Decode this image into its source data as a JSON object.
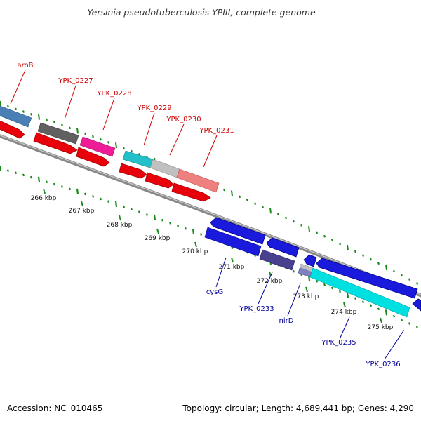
{
  "title": "Yersinia pseudotuberculosis YPIII, complete genome",
  "footer": {
    "accession": "Accession: NC_010465",
    "summary": "Topology: circular; Length: 4,689,441 bp; Genes: 4,290"
  },
  "colors": {
    "forward_label": "#cc0000",
    "reverse_label": "#00009a",
    "tick": "#1a8a1a",
    "backbone": "#777777"
  },
  "ruler": {
    "unit": "kbp",
    "labels": [
      "266 kbp",
      "267 kbp",
      "268 kbp",
      "269 kbp",
      "270 kbp",
      "271 kbp",
      "272 kbp",
      "273 kbp",
      "274 kbp",
      "275 kbp"
    ]
  },
  "forward_genes": [
    {
      "label": "aroB",
      "color": "#4a7fb5"
    },
    {
      "label": "YPK_0227",
      "color": "#606060"
    },
    {
      "label": "YPK_0228",
      "color": "#ee1c96"
    },
    {
      "label": "YPK_0229",
      "color": "#22c0c8"
    },
    {
      "label": "YPK_0230",
      "color": "#c0c0c0"
    },
    {
      "label": "YPK_0231",
      "color": "#ee8080"
    }
  ],
  "reverse_genes": [
    {
      "label": "cysG",
      "color": "#1a1adc"
    },
    {
      "label": "YPK_0233",
      "color": "#4a4090"
    },
    {
      "label": "nirD",
      "color": "#8080c0"
    },
    {
      "label": "YPK_0235",
      "color": "#1a1adc"
    },
    {
      "label": "YPK_0236",
      "color": "#00e0e0"
    }
  ]
}
